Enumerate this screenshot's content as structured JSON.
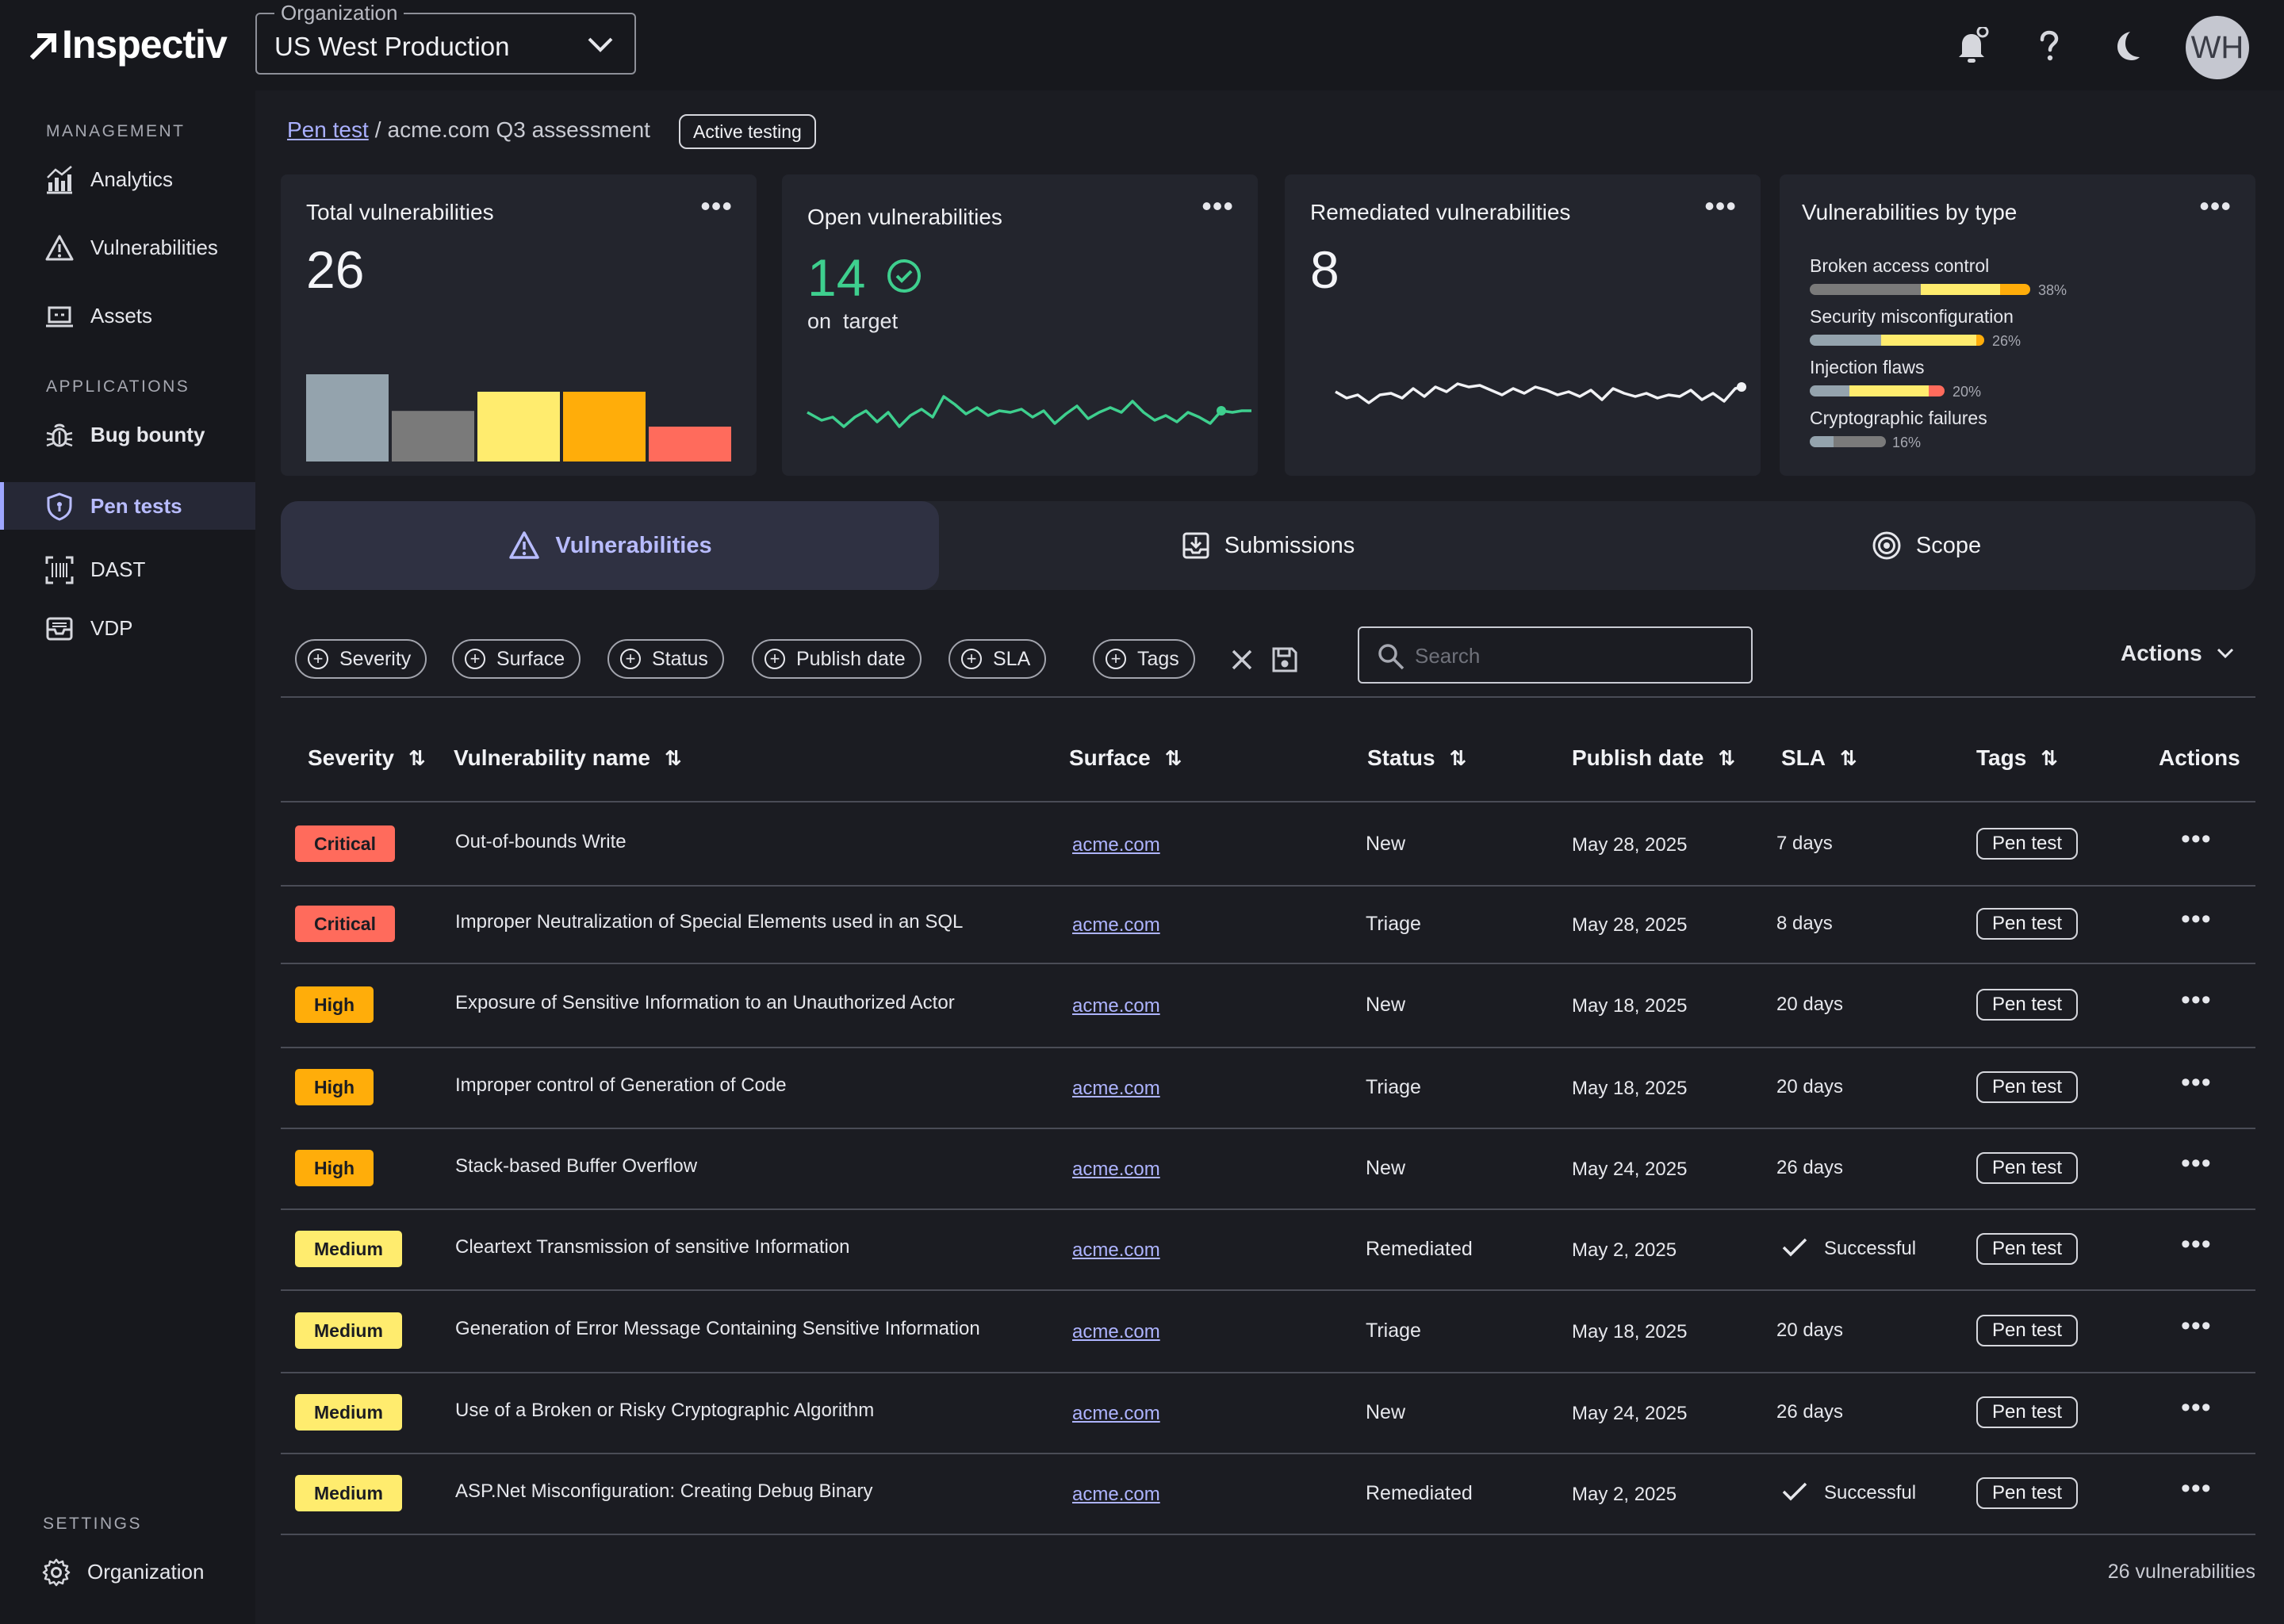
{
  "brand": {
    "name": "Inspectiv",
    "accent": "#9ea6ff"
  },
  "org_selector": {
    "legend": "Organization",
    "value": "US West Production"
  },
  "topbar": {
    "avatar_initials": "WH"
  },
  "sidebar": {
    "sections": [
      "MANAGEMENT",
      "APPLICATIONS",
      "SETTINGS"
    ],
    "items": [
      {
        "label": "Analytics",
        "icon": "analytics-icon"
      },
      {
        "label": "Vulnerabilities",
        "icon": "warning-triangle-icon"
      },
      {
        "label": "Assets",
        "icon": "laptop-icon"
      },
      {
        "label": "Bug bounty",
        "icon": "bug-icon"
      },
      {
        "label": "Pen tests",
        "icon": "shield-icon",
        "active": true
      },
      {
        "label": "DAST",
        "icon": "scan-icon"
      },
      {
        "label": "VDP",
        "icon": "inbox-icon"
      },
      {
        "label": "Organization",
        "icon": "gear-icon"
      }
    ]
  },
  "breadcrumb": {
    "parent": "Pen test",
    "separator": "/",
    "current": "acme.com Q3 assessment",
    "status": "Active testing"
  },
  "cards": {
    "total": {
      "title": "Total vulnerabilities",
      "value": "26",
      "bars": [
        {
          "value": 1.0,
          "color": "#94a3ad"
        },
        {
          "value": 0.58,
          "color": "#7a7a7a"
        },
        {
          "value": 0.8,
          "color": "#ffec6e"
        },
        {
          "value": 0.8,
          "color": "#ffad0a"
        },
        {
          "value": 0.4,
          "color": "#ff6b5c"
        }
      ]
    },
    "open": {
      "title": "Open vulnerabilities",
      "value": "14",
      "subtitle": "on  target",
      "color": "#3ecf8e"
    },
    "remediated": {
      "title": "Remediated vulnerabilities",
      "value": "8"
    },
    "by_type": {
      "title": "Vulnerabilities by type",
      "items": [
        {
          "label": "Broken access control",
          "pct": "38%"
        },
        {
          "label": "Security misconfiguration",
          "pct": "26%"
        },
        {
          "label": "Injection flaws",
          "pct": "20%"
        },
        {
          "label": "Cryptographic failures",
          "pct": "16%"
        }
      ]
    }
  },
  "tabs": [
    {
      "label": "Vulnerabilities",
      "icon": "warning-triangle-icon",
      "active": true
    },
    {
      "label": "Submissions",
      "icon": "download-box-icon"
    },
    {
      "label": "Scope",
      "icon": "target-icon"
    }
  ],
  "filters": [
    "Severity",
    "Surface",
    "Status",
    "Publish date",
    "SLA",
    "Tags"
  ],
  "search": {
    "placeholder": "Search"
  },
  "actions_label": "Actions",
  "table": {
    "columns": [
      "Severity",
      "Vulnerability name",
      "Surface",
      "Status",
      "Publish date",
      "SLA",
      "Tags",
      "Actions"
    ],
    "rows": [
      {
        "severity": "Critical",
        "name": "Out-of-bounds Write",
        "surface": "acme.com",
        "status": "New",
        "date": "May 28, 2025",
        "sla": "7 days",
        "tag": "Pen test"
      },
      {
        "severity": "Critical",
        "name": "Improper Neutralization of Special Elements used in an SQL",
        "surface": "acme.com",
        "status": "Triage",
        "date": "May 28, 2025",
        "sla": "8 days",
        "tag": "Pen test"
      },
      {
        "severity": "High",
        "name": "Exposure of Sensitive Information to an Unauthorized Actor",
        "surface": "acme.com",
        "status": "New",
        "date": "May 18, 2025",
        "sla": "20 days",
        "tag": "Pen test"
      },
      {
        "severity": "High",
        "name": "Improper control of Generation of Code",
        "surface": "acme.com",
        "status": "Triage",
        "date": "May 18, 2025",
        "sla": "20 days",
        "tag": "Pen test"
      },
      {
        "severity": "High",
        "name": "Stack-based Buffer Overflow",
        "surface": "acme.com",
        "status": "New",
        "date": "May 24, 2025",
        "sla": "26 days",
        "tag": "Pen test"
      },
      {
        "severity": "Medium",
        "name": "Cleartext Transmission of sensitive Information",
        "surface": "acme.com",
        "status": "Remediated",
        "date": "May 2, 2025",
        "sla": "Successful",
        "tag": "Pen test"
      },
      {
        "severity": "Medium",
        "name": "Generation of Error Message Containing Sensitive Information",
        "surface": "acme.com",
        "status": "Triage",
        "date": "May 18, 2025",
        "sla": "20 days",
        "tag": "Pen test"
      },
      {
        "severity": "Medium",
        "name": "Use of a Broken or Risky Cryptographic Algorithm",
        "surface": "acme.com",
        "status": "New",
        "date": "May 24, 2025",
        "sla": "26 days",
        "tag": "Pen test"
      },
      {
        "severity": "Medium",
        "name": "ASP.Net Misconfiguration: Creating Debug Binary",
        "surface": "acme.com",
        "status": "Remediated",
        "date": "May 2, 2025",
        "sla": "Successful",
        "tag": "Pen test"
      }
    ]
  },
  "footer": {
    "count": "26 vulnerabilities"
  }
}
